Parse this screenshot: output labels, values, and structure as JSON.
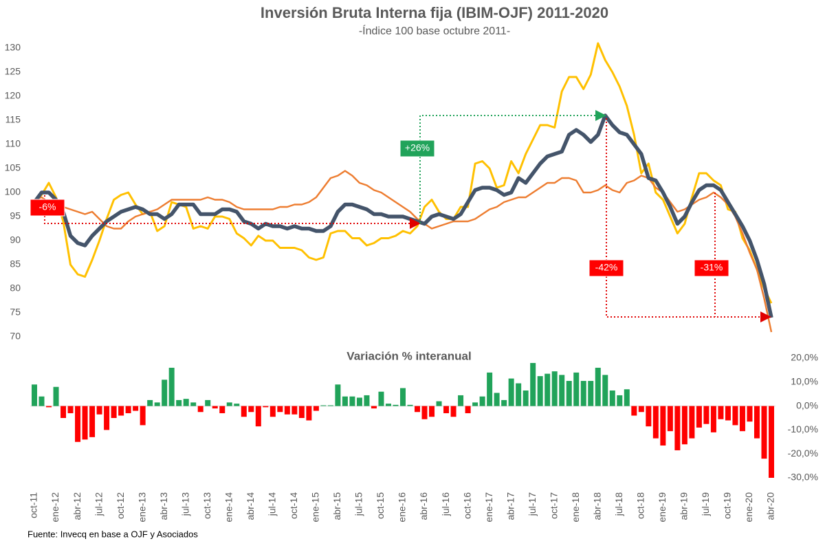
{
  "chart_data": [
    {
      "type": "line",
      "title": "Inversión Bruta Interna fija (IBIM-OJF) 2011-2020",
      "subtitle": "-Índice 100 base octubre 2011-",
      "ylim": [
        68,
        132
      ],
      "yticks": [
        70,
        75,
        80,
        85,
        90,
        95,
        100,
        105,
        110,
        115,
        120,
        125,
        130
      ],
      "annotations": [
        "-6%",
        "+26%",
        "-42%",
        "-31%"
      ],
      "series": [
        {
          "color": "#ffc000",
          "values": [
            98,
            99.5,
            102,
            99,
            94,
            85,
            83,
            82.5,
            86,
            90,
            94.5,
            98.5,
            99.5,
            100,
            97.5,
            95.5,
            96,
            92,
            93,
            98,
            97.5,
            97,
            92.5,
            93,
            92.5,
            95,
            95,
            94.5,
            91.5,
            90.5,
            89,
            91,
            90,
            90,
            88.5,
            88.5,
            88.5,
            88,
            86.5,
            86,
            86.5,
            91.5,
            92,
            92,
            90.5,
            90.5,
            89,
            89.5,
            90.5,
            90.5,
            91,
            92,
            91.5,
            93,
            97,
            98.5,
            96,
            94.5,
            94.5,
            97,
            97,
            106,
            106.5,
            105,
            101,
            101.5,
            106.5,
            104,
            108,
            111,
            114,
            114,
            113.5,
            121,
            124,
            124,
            121.5,
            124.5,
            131,
            127.5,
            125,
            122,
            118,
            112,
            104,
            106,
            100,
            98.5,
            95,
            91.5,
            93.5,
            99,
            104,
            104,
            102.5,
            101.5,
            96.5,
            96,
            90.5,
            88,
            84,
            80,
            77
          ]
        },
        {
          "color": "#ed7d31",
          "values": [
            98.5,
            99,
            98,
            97.5,
            97,
            96.5,
            96,
            95.5,
            96,
            94.5,
            93,
            92.5,
            92.5,
            94,
            95,
            95.5,
            96,
            96.5,
            97.5,
            98.5,
            98.5,
            98.5,
            98.5,
            98.5,
            99,
            98.5,
            98.5,
            98,
            97,
            96.5,
            96.5,
            96.5,
            96.5,
            96.5,
            97,
            97,
            97.5,
            97.5,
            98,
            99,
            101,
            103,
            103.5,
            104.5,
            103.5,
            102,
            101.5,
            100.5,
            100,
            99,
            98,
            97,
            96,
            94.5,
            93.5,
            92.5,
            93,
            93.5,
            94,
            94,
            94,
            94.5,
            95.5,
            96.5,
            97,
            98,
            98.5,
            99,
            99,
            100,
            101,
            102,
            102,
            103,
            103,
            102.5,
            100,
            100,
            100.5,
            101.5,
            100.5,
            100,
            102,
            102.5,
            103.5,
            103,
            101,
            100,
            98,
            96,
            96.5,
            97.5,
            98.5,
            99,
            100,
            99,
            97.5,
            95,
            91.5,
            87.5,
            84,
            78,
            71
          ]
        },
        {
          "color": "#44546a",
          "values": [
            98,
            100,
            100,
            98.5,
            96,
            91,
            89.5,
            89,
            91,
            92.5,
            94,
            95,
            96,
            96.5,
            97,
            96.5,
            95.5,
            95.5,
            94.5,
            95.5,
            97.5,
            97.5,
            97.5,
            95.5,
            95.5,
            95.5,
            96.5,
            96.5,
            96,
            94,
            93.5,
            92.5,
            93.5,
            93,
            93,
            92.5,
            93,
            92.5,
            92.5,
            92,
            92,
            93,
            96,
            97.5,
            97.5,
            97,
            96.5,
            95.5,
            95.5,
            95,
            95,
            95,
            94.5,
            94,
            93.5,
            95,
            95.5,
            95,
            94.5,
            95.5,
            98,
            100.5,
            101,
            101,
            100.5,
            99.5,
            100,
            103,
            102,
            104,
            106,
            107.5,
            108,
            108.5,
            112,
            113,
            112,
            110.5,
            112,
            116,
            114,
            112.5,
            112,
            110,
            108,
            103,
            102.5,
            100,
            97,
            93.5,
            95,
            98,
            100.5,
            101.5,
            101.5,
            100.5,
            98,
            95.5,
            93,
            90,
            86,
            81,
            74
          ]
        }
      ]
    },
    {
      "type": "bar",
      "title": "Variación % interanual",
      "color_positive": "#21a35a",
      "color_negative": "#ff0000",
      "ylim": [
        -30,
        20
      ],
      "yticks": [
        {
          "value": 20,
          "label": "20,0%"
        },
        {
          "value": 10,
          "label": "10,0%"
        },
        {
          "value": 0,
          "label": "0,0%"
        },
        {
          "value": -10,
          "label": "-10,0%"
        },
        {
          "value": -20,
          "label": "-20,0%"
        },
        {
          "value": -30,
          "label": "-30,0%"
        }
      ],
      "categories": [
        "oct-11",
        null,
        null,
        "ene-12",
        null,
        null,
        "abr-12",
        null,
        null,
        "jul-12",
        null,
        null,
        "oct-12",
        null,
        null,
        "ene-13",
        null,
        null,
        "abr-13",
        null,
        null,
        "jul-13",
        null,
        null,
        "oct-13",
        null,
        null,
        "ene-14",
        null,
        null,
        "abr-14",
        null,
        null,
        "jul-14",
        null,
        null,
        "oct-14",
        null,
        null,
        "ene-15",
        null,
        null,
        "abr-15",
        null,
        null,
        "jul-15",
        null,
        null,
        "oct-15",
        null,
        null,
        "ene-16",
        null,
        null,
        "abr-16",
        null,
        null,
        "jul-16",
        null,
        null,
        "oct-16",
        null,
        null,
        "ene-17",
        null,
        null,
        "abr-17",
        null,
        null,
        "jul-17",
        null,
        null,
        "oct-17",
        null,
        null,
        "ene-18",
        null,
        null,
        "abr-18",
        null,
        null,
        "jul-18",
        null,
        null,
        "oct-18",
        null,
        null,
        "ene-19",
        null,
        null,
        "abr-19",
        null,
        null,
        "jul-19",
        null,
        null,
        "oct-19",
        null,
        null,
        "ene-20",
        null,
        null,
        "abr-20"
      ],
      "values": [
        9,
        4,
        -0.5,
        8,
        -5,
        -3,
        -15,
        -14,
        -13,
        -3.5,
        -10,
        -5,
        -4,
        -3,
        -2,
        -8,
        2.5,
        1.5,
        11,
        16,
        2.5,
        3,
        1.5,
        -2.5,
        2.5,
        -1,
        -3,
        1.5,
        1,
        -4.5,
        -2.5,
        -8.5,
        -0.5,
        -4.5,
        -2.5,
        -3.5,
        -3.5,
        -5,
        -6,
        -2,
        0.3,
        0.3,
        9,
        4,
        4,
        3.5,
        4.5,
        -1,
        6,
        1,
        0.5,
        7.5,
        0.5,
        -2.5,
        -5.5,
        -4.5,
        2,
        -3,
        -4.5,
        4.5,
        -3,
        1.5,
        4,
        14,
        5.5,
        2.5,
        11.5,
        9.5,
        6.5,
        18,
        12.5,
        13.5,
        14.5,
        13,
        10.5,
        14,
        10.5,
        10.5,
        16,
        13,
        6.5,
        4.5,
        7,
        -4,
        -2.5,
        -8.5,
        -13.5,
        -16.5,
        -10.5,
        -18.5,
        -16,
        -13.5,
        -9,
        -7.5,
        -11,
        -5.5,
        -6,
        -8,
        -10.5,
        -6.5,
        -13.5,
        -22,
        -30
      ]
    }
  ],
  "source": "Fuente: Invecq en base a OJF y Asociados"
}
